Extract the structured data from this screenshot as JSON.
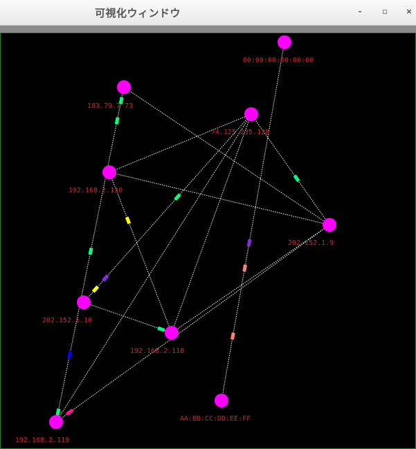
{
  "window": {
    "title": "可視化ウィンドウ",
    "controls": {
      "minimize": "-",
      "maximize": "▫",
      "close": "×"
    }
  },
  "colors": {
    "background": "#000000",
    "node": "#ff00ff",
    "label": "#e0202a",
    "edge": "#ffffff",
    "frame": "#2f7d2f"
  },
  "graph": {
    "nodes": [
      {
        "id": "n0",
        "label": "00:00:00:00:00:00"
      },
      {
        "id": "n1",
        "label": "183.79.7  73"
      },
      {
        "id": "n2",
        "label": "74.125.235.120"
      },
      {
        "id": "n3",
        "label": "192.168.2.130"
      },
      {
        "id": "n4",
        "label": "202.152.1.9"
      },
      {
        "id": "n5",
        "label": "202.152.1.10"
      },
      {
        "id": "n6",
        "label": "192.168.2.118"
      },
      {
        "id": "n7",
        "label": "AA:BB:CC:DD:EE:FF"
      },
      {
        "id": "n8",
        "label": "192.168.2.119"
      }
    ],
    "edges": [
      {
        "from": "n0",
        "to": "n7",
        "packets": [
          {
            "t": 0.56,
            "color": "#8a2be2"
          },
          {
            "t": 0.63,
            "color": "#ff8080"
          },
          {
            "t": 0.82,
            "color": "#ff8080"
          }
        ]
      },
      {
        "from": "n1",
        "to": "n8",
        "packets": [
          {
            "t": 0.04,
            "color": "#00ff7f"
          },
          {
            "t": 0.1,
            "color": "#00ff7f"
          },
          {
            "t": 0.49,
            "color": "#00ff7f"
          },
          {
            "t": 0.8,
            "color": "#0000ff"
          },
          {
            "t": 0.97,
            "color": "#00ff7f"
          }
        ]
      },
      {
        "from": "n1",
        "to": "n4",
        "packets": []
      },
      {
        "from": "n3",
        "to": "n2",
        "packets": []
      },
      {
        "from": "n3",
        "to": "n4",
        "packets": []
      },
      {
        "from": "n3",
        "to": "n6",
        "packets": [
          {
            "t": 0.3,
            "color": "#ffff00"
          }
        ]
      },
      {
        "from": "n2",
        "to": "n4",
        "packets": [
          {
            "t": 0.58,
            "color": "#00ff7f"
          }
        ]
      },
      {
        "from": "n2",
        "to": "n5",
        "packets": [
          {
            "t": 0.44,
            "color": "#00ff7f"
          },
          {
            "t": 0.87,
            "color": "#8a2be2"
          },
          {
            "t": 0.93,
            "color": "#ffff00"
          }
        ]
      },
      {
        "from": "n2",
        "to": "n6",
        "packets": []
      },
      {
        "from": "n2",
        "to": "n8",
        "packets": []
      },
      {
        "from": "n5",
        "to": "n6",
        "packets": [
          {
            "t": 0.88,
            "color": "#00ff7f"
          }
        ]
      },
      {
        "from": "n4",
        "to": "n6",
        "packets": []
      },
      {
        "from": "n4",
        "to": "n8",
        "packets": [
          {
            "t": 0.95,
            "color": "#ff1493"
          }
        ]
      }
    ]
  }
}
